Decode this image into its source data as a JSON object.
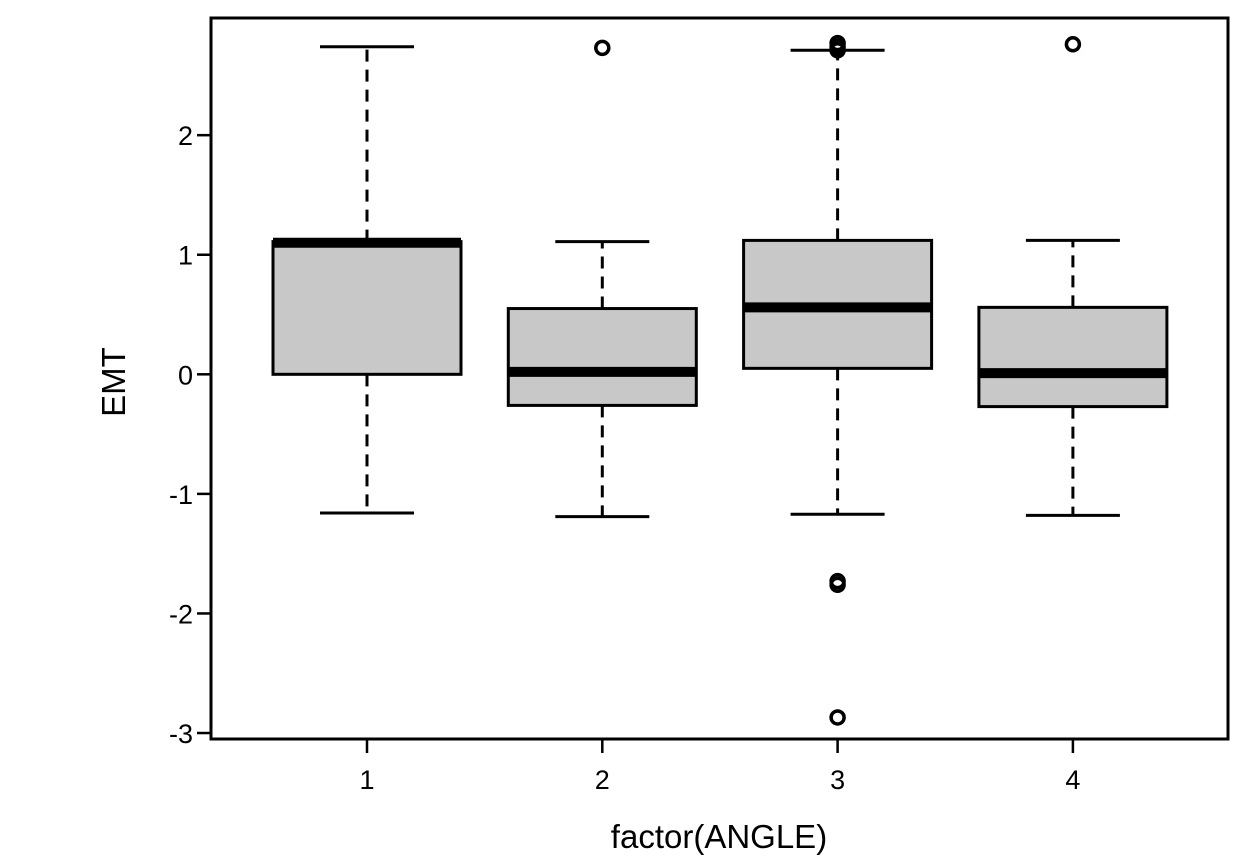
{
  "chart_data": {
    "type": "box",
    "xlabel": "factor(ANGLE)",
    "ylabel": "EMT",
    "ylim": [
      -3.05,
      2.98
    ],
    "yticks": [
      -3,
      -2,
      -1,
      0,
      1,
      2
    ],
    "categories": [
      "1",
      "2",
      "3",
      "4"
    ],
    "box_fill": "#c8c8c8",
    "line_color": "#000000",
    "boxes": [
      {
        "category": "1",
        "whisker_low": -1.16,
        "q1": 0.0,
        "median": 1.1,
        "q3": 1.11,
        "whisker_high": 2.74,
        "outliers": []
      },
      {
        "category": "2",
        "whisker_low": -1.19,
        "q1": -0.26,
        "median": 0.02,
        "q3": 0.55,
        "whisker_high": 1.11,
        "outliers": [
          2.73
        ]
      },
      {
        "category": "3",
        "whisker_low": -1.17,
        "q1": 0.05,
        "median": 0.56,
        "q3": 1.12,
        "whisker_high": 2.71,
        "outliers": [
          2.77,
          2.74,
          2.71,
          -1.73,
          -1.76,
          -2.87
        ]
      },
      {
        "category": "4",
        "whisker_low": -1.18,
        "q1": -0.27,
        "median": 0.01,
        "q3": 0.56,
        "whisker_high": 1.12,
        "outliers": [
          2.76
        ]
      }
    ]
  }
}
